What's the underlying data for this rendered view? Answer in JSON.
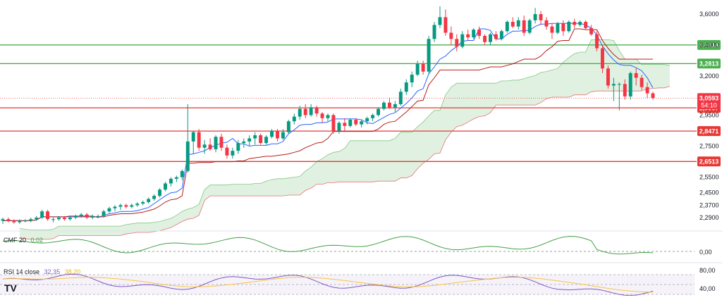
{
  "chart_data": {
    "type": "candlestick",
    "instrument_hint": "price chart with ichimoku and indicators",
    "price_axis": {
      "ticks": [
        "3,6000",
        "3,4000",
        "3,2000",
        "2,9500",
        "2,7500",
        "2,5500",
        "2,4500",
        "2,3700",
        "2,2900"
      ],
      "tick_values": [
        3.6,
        3.4,
        3.2,
        2.95,
        2.75,
        2.55,
        2.45,
        2.37,
        2.29
      ],
      "ylim": [
        2.24,
        3.65
      ]
    },
    "levels": [
      {
        "label": "3,4014",
        "value": 3.4014,
        "color": "#4caf50"
      },
      {
        "label": "3,2813",
        "value": 3.2813,
        "color": "#4caf50"
      },
      {
        "label": "2,9967",
        "value": 2.9967,
        "color": "#e53935"
      },
      {
        "label": "2,8471",
        "value": 2.8471,
        "color": "#e53935"
      },
      {
        "label": "2,6513",
        "value": 2.6513,
        "color": "#e53935"
      }
    ],
    "current_price": {
      "label": "3,0593",
      "value": 3.0593,
      "countdown": "54:10",
      "color": "#f23645"
    },
    "candles": [
      [
        2.27,
        2.29,
        2.25,
        2.28
      ],
      [
        2.28,
        2.29,
        2.26,
        2.27
      ],
      [
        2.27,
        2.28,
        2.25,
        2.26
      ],
      [
        2.26,
        2.28,
        2.25,
        2.27
      ],
      [
        2.27,
        2.28,
        2.26,
        2.27
      ],
      [
        2.27,
        2.29,
        2.26,
        2.28
      ],
      [
        2.28,
        2.3,
        2.27,
        2.29
      ],
      [
        2.29,
        2.34,
        2.28,
        2.33
      ],
      [
        2.33,
        2.34,
        2.27,
        2.28
      ],
      [
        2.28,
        2.29,
        2.26,
        2.28
      ],
      [
        2.28,
        2.3,
        2.27,
        2.29
      ],
      [
        2.29,
        2.3,
        2.27,
        2.28
      ],
      [
        2.28,
        2.3,
        2.27,
        2.29
      ],
      [
        2.29,
        2.31,
        2.28,
        2.3
      ],
      [
        2.3,
        2.32,
        2.29,
        2.31
      ],
      [
        2.31,
        2.32,
        2.28,
        2.29
      ],
      [
        2.29,
        2.31,
        2.28,
        2.3
      ],
      [
        2.3,
        2.31,
        2.29,
        2.3
      ],
      [
        2.3,
        2.34,
        2.29,
        2.33
      ],
      [
        2.33,
        2.36,
        2.32,
        2.35
      ],
      [
        2.35,
        2.37,
        2.33,
        2.36
      ],
      [
        2.36,
        2.38,
        2.34,
        2.37
      ],
      [
        2.37,
        2.38,
        2.35,
        2.36
      ],
      [
        2.36,
        2.38,
        2.35,
        2.37
      ],
      [
        2.37,
        2.39,
        2.36,
        2.38
      ],
      [
        2.38,
        2.4,
        2.37,
        2.39
      ],
      [
        2.39,
        2.42,
        2.38,
        2.41
      ],
      [
        2.41,
        2.44,
        2.4,
        2.43
      ],
      [
        2.43,
        2.48,
        2.42,
        2.47
      ],
      [
        2.47,
        2.52,
        2.46,
        2.51
      ],
      [
        2.51,
        2.55,
        2.49,
        2.54
      ],
      [
        2.54,
        2.56,
        2.52,
        2.55
      ],
      [
        2.55,
        2.6,
        2.53,
        2.59
      ],
      [
        2.59,
        3.02,
        2.58,
        2.78
      ],
      [
        2.78,
        2.85,
        2.7,
        2.84
      ],
      [
        2.84,
        2.86,
        2.72,
        2.74
      ],
      [
        2.74,
        2.79,
        2.7,
        2.76
      ],
      [
        2.76,
        2.8,
        2.72,
        2.73
      ],
      [
        2.73,
        2.82,
        2.71,
        2.81
      ],
      [
        2.81,
        2.83,
        2.72,
        2.74
      ],
      [
        2.74,
        2.76,
        2.67,
        2.69
      ],
      [
        2.69,
        2.74,
        2.67,
        2.72
      ],
      [
        2.72,
        2.79,
        2.7,
        2.77
      ],
      [
        2.77,
        2.8,
        2.74,
        2.78
      ],
      [
        2.78,
        2.82,
        2.75,
        2.8
      ],
      [
        2.8,
        2.84,
        2.76,
        2.82
      ],
      [
        2.82,
        2.83,
        2.76,
        2.77
      ],
      [
        2.77,
        2.82,
        2.76,
        2.81
      ],
      [
        2.81,
        2.86,
        2.8,
        2.85
      ],
      [
        2.85,
        2.86,
        2.78,
        2.8
      ],
      [
        2.8,
        2.86,
        2.79,
        2.84
      ],
      [
        2.84,
        2.92,
        2.83,
        2.91
      ],
      [
        2.91,
        2.96,
        2.89,
        2.94
      ],
      [
        2.94,
        3.01,
        2.92,
        2.99
      ],
      [
        2.99,
        3.02,
        2.93,
        2.95
      ],
      [
        2.95,
        3.02,
        2.94,
        3.0
      ],
      [
        3.0,
        3.01,
        2.94,
        2.96
      ],
      [
        2.96,
        2.97,
        2.9,
        2.93
      ],
      [
        2.93,
        2.96,
        2.91,
        2.95
      ],
      [
        2.95,
        2.96,
        2.83,
        2.85
      ],
      [
        2.85,
        2.91,
        2.83,
        2.9
      ],
      [
        2.9,
        2.93,
        2.85,
        2.88
      ],
      [
        2.88,
        2.93,
        2.87,
        2.92
      ],
      [
        2.92,
        2.93,
        2.88,
        2.89
      ],
      [
        2.89,
        2.92,
        2.87,
        2.91
      ],
      [
        2.91,
        2.94,
        2.89,
        2.93
      ],
      [
        2.93,
        2.96,
        2.91,
        2.95
      ],
      [
        2.95,
        3.0,
        2.94,
        2.99
      ],
      [
        2.99,
        3.04,
        2.98,
        3.03
      ],
      [
        3.03,
        3.06,
        2.99,
        3.0
      ],
      [
        3.0,
        3.04,
        2.97,
        3.02
      ],
      [
        3.02,
        3.12,
        3.01,
        3.1
      ],
      [
        3.1,
        3.18,
        3.08,
        3.16
      ],
      [
        3.16,
        3.23,
        3.13,
        3.21
      ],
      [
        3.21,
        3.3,
        3.2,
        3.28
      ],
      [
        3.28,
        3.3,
        3.21,
        3.23
      ],
      [
        3.23,
        3.46,
        3.21,
        3.44
      ],
      [
        3.44,
        3.55,
        3.42,
        3.53
      ],
      [
        3.53,
        3.65,
        3.51,
        3.58
      ],
      [
        3.58,
        3.63,
        3.46,
        3.48
      ],
      [
        3.48,
        3.52,
        3.4,
        3.44
      ],
      [
        3.44,
        3.47,
        3.36,
        3.39
      ],
      [
        3.39,
        3.49,
        3.38,
        3.47
      ],
      [
        3.47,
        3.5,
        3.43,
        3.45
      ],
      [
        3.45,
        3.51,
        3.44,
        3.5
      ],
      [
        3.5,
        3.52,
        3.44,
        3.46
      ],
      [
        3.46,
        3.47,
        3.4,
        3.42
      ],
      [
        3.42,
        3.48,
        3.4,
        3.47
      ],
      [
        3.47,
        3.49,
        3.43,
        3.44
      ],
      [
        3.44,
        3.5,
        3.43,
        3.49
      ],
      [
        3.49,
        3.56,
        3.48,
        3.55
      ],
      [
        3.55,
        3.58,
        3.51,
        3.52
      ],
      [
        3.52,
        3.58,
        3.5,
        3.56
      ],
      [
        3.56,
        3.59,
        3.46,
        3.48
      ],
      [
        3.48,
        3.57,
        3.47,
        3.56
      ],
      [
        3.56,
        3.64,
        3.54,
        3.6
      ],
      [
        3.6,
        3.62,
        3.53,
        3.56
      ],
      [
        3.56,
        3.58,
        3.5,
        3.52
      ],
      [
        3.52,
        3.54,
        3.44,
        3.48
      ],
      [
        3.48,
        3.55,
        3.47,
        3.54
      ],
      [
        3.54,
        3.56,
        3.46,
        3.49
      ],
      [
        3.49,
        3.56,
        3.48,
        3.55
      ],
      [
        3.55,
        3.57,
        3.51,
        3.53
      ],
      [
        3.53,
        3.56,
        3.52,
        3.55
      ],
      [
        3.55,
        3.56,
        3.5,
        3.51
      ],
      [
        3.51,
        3.53,
        3.46,
        3.47
      ],
      [
        3.47,
        3.49,
        3.36,
        3.38
      ],
      [
        3.38,
        3.4,
        3.22,
        3.25
      ],
      [
        3.25,
        3.27,
        3.12,
        3.14
      ],
      [
        3.14,
        3.19,
        3.04,
        3.15
      ],
      [
        3.15,
        3.16,
        2.98,
        3.15
      ],
      [
        3.15,
        3.18,
        3.05,
        3.07
      ],
      [
        3.07,
        3.23,
        3.05,
        3.22
      ],
      [
        3.22,
        3.25,
        3.14,
        3.19
      ],
      [
        3.19,
        3.21,
        3.11,
        3.13
      ],
      [
        3.13,
        3.16,
        3.06,
        3.09
      ],
      [
        3.09,
        3.1,
        3.05,
        3.06
      ]
    ],
    "indicators": [
      {
        "name": "CMF 20",
        "label": "CMF 20",
        "value_label": "0,02",
        "axis_label": "0,00",
        "color": "#43a047"
      },
      {
        "name": "RSI 14 close",
        "label": "RSI 14 close",
        "value_label": "32,35",
        "value_label_2": "38,20",
        "axis_labels": [
          "80,00",
          "40,00"
        ],
        "color": "#7e57c2",
        "ma_color": "#f9c440"
      }
    ],
    "legend": "none",
    "grid": false
  },
  "colors": {
    "up": "#089981",
    "down": "#f23645",
    "tenkan": "#2962ff",
    "kijun": "#b71c1c",
    "cloud_up": "#c8e6c9",
    "cloud_down": "#ffcdd2"
  },
  "brand": {
    "logo_text": "TV"
  }
}
